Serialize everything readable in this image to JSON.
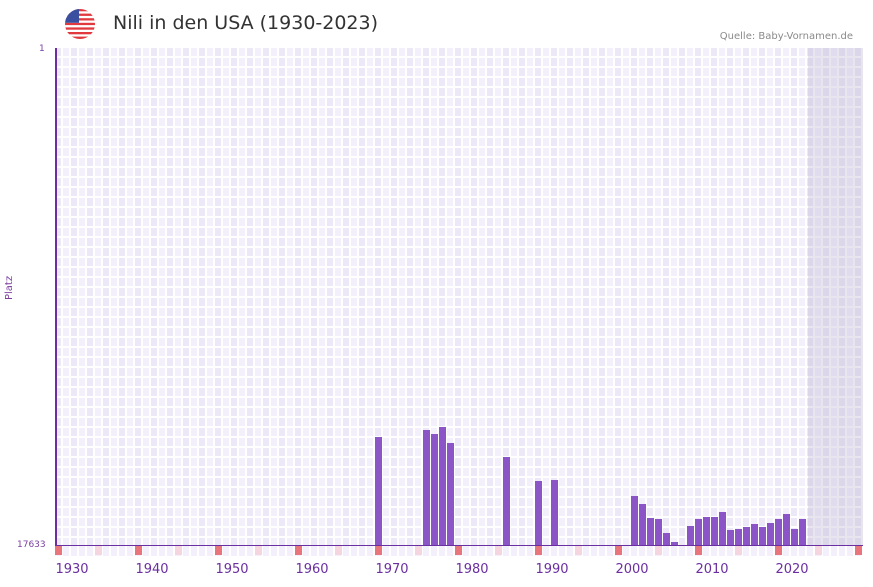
{
  "header": {
    "title": "Nili in den USA (1930-2023)",
    "source": "Quelle: Baby-Vornamen.de",
    "flag_icon": "us-flag-icon"
  },
  "colors": {
    "bar": "#8b55c8",
    "axis": "#6a2fa0",
    "marker_decade": "#e8747c",
    "marker_half": "#f5d6e0",
    "grid_a": "#ede8f8",
    "grid_b": "#f3f0fc"
  },
  "axes": {
    "ylabel": "Platz",
    "ytick_top": "1",
    "ytick_bottom": "17633",
    "xticks": [
      "1930",
      "1940",
      "1950",
      "1960",
      "1970",
      "1980",
      "1990",
      "2000",
      "2010",
      "2020"
    ]
  },
  "chart_data": {
    "type": "bar",
    "title": "Nili in den USA (1930-2023)",
    "subtitle": "Quelle: Baby-Vornamen.de",
    "xlabel": "",
    "ylabel": "Platz",
    "y_inverted": true,
    "ylim": [
      1,
      17633
    ],
    "xlim": [
      1928,
      2028
    ],
    "grid": true,
    "shaded_future_from": 2022,
    "x": [
      1968,
      1974,
      1975,
      1976,
      1977,
      1984,
      1988,
      1990,
      2000,
      2001,
      2002,
      2003,
      2004,
      2005,
      2007,
      2008,
      2009,
      2010,
      2011,
      2012,
      2013,
      2014,
      2015,
      2016,
      2017,
      2018,
      2019,
      2020,
      2021
    ],
    "values": [
      13785,
      13536,
      13678,
      13464,
      13999,
      14497,
      15352,
      15317,
      15887,
      16172,
      16671,
      16707,
      17206,
      17526,
      16956,
      16707,
      16635,
      16635,
      16457,
      17098,
      17063,
      16991,
      16884,
      16991,
      16849,
      16707,
      16529,
      17063,
      16707
    ],
    "xtick_labels": [
      "1930",
      "1940",
      "1950",
      "1960",
      "1970",
      "1980",
      "1990",
      "2000",
      "2010",
      "2020"
    ]
  }
}
